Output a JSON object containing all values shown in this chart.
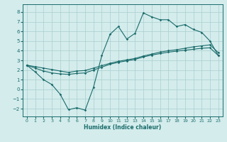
{
  "xlabel": "Humidex (Indice chaleur)",
  "bg_color": "#d4ecec",
  "grid_color": "#aacfcf",
  "line_color": "#1a6b6b",
  "xlim": [
    -0.5,
    23.5
  ],
  "ylim": [
    -2.8,
    8.8
  ],
  "xticks": [
    0,
    1,
    2,
    3,
    4,
    5,
    6,
    7,
    8,
    9,
    10,
    11,
    12,
    13,
    14,
    15,
    16,
    17,
    18,
    19,
    20,
    21,
    22,
    23
  ],
  "yticks": [
    -2,
    -1,
    0,
    1,
    2,
    3,
    4,
    5,
    6,
    7,
    8
  ],
  "line1_x": [
    0,
    1,
    2,
    3,
    4,
    5,
    6,
    7,
    8,
    9,
    10,
    11,
    12,
    13,
    14,
    15,
    16,
    17,
    18,
    19,
    20,
    21,
    22,
    23
  ],
  "line1_y": [
    2.5,
    1.8,
    1.0,
    0.5,
    -0.5,
    -2.1,
    -1.9,
    -2.15,
    0.2,
    3.5,
    5.7,
    6.5,
    5.2,
    5.8,
    7.9,
    7.5,
    7.2,
    7.2,
    6.5,
    6.7,
    6.2,
    5.9,
    5.0,
    3.5
  ],
  "line2_x": [
    0,
    1,
    2,
    3,
    4,
    5,
    6,
    7,
    8,
    9,
    10,
    11,
    12,
    13,
    14,
    15,
    16,
    17,
    18,
    19,
    20,
    21,
    22,
    23
  ],
  "line2_y": [
    2.5,
    2.35,
    2.2,
    2.05,
    1.9,
    1.75,
    1.9,
    1.95,
    2.2,
    2.45,
    2.7,
    2.9,
    3.05,
    3.2,
    3.45,
    3.65,
    3.85,
    4.0,
    4.1,
    4.25,
    4.4,
    4.5,
    4.6,
    3.8
  ],
  "line3_x": [
    0,
    1,
    2,
    3,
    4,
    5,
    6,
    7,
    8,
    9,
    10,
    11,
    12,
    13,
    14,
    15,
    16,
    17,
    18,
    19,
    20,
    21,
    22,
    23
  ],
  "line3_y": [
    2.5,
    2.2,
    1.9,
    1.7,
    1.6,
    1.55,
    1.65,
    1.7,
    2.0,
    2.3,
    2.6,
    2.8,
    2.95,
    3.1,
    3.35,
    3.55,
    3.7,
    3.85,
    3.95,
    4.05,
    4.15,
    4.25,
    4.3,
    3.5
  ]
}
